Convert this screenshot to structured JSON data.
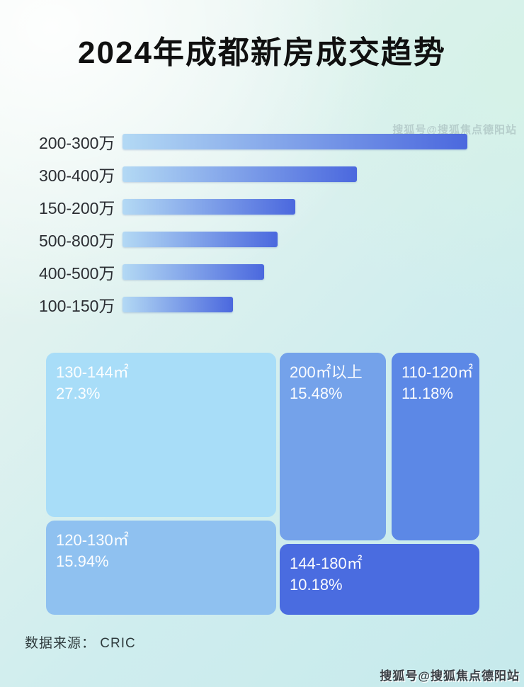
{
  "title": "2024年成都新房成交趋势",
  "source": "数据来源： CRIC",
  "watermark": {
    "text": "搜狐号@搜狐焦点德阳站"
  },
  "colors": {
    "background_start": "#eff7f2",
    "background_end": "#c6eaec",
    "bar_gradient_start": "#b3d9f4",
    "bar_gradient_end": "#4b68de",
    "title_text": "#101010",
    "label_text": "#2b2e33",
    "tile_text": "#ffffff"
  },
  "chart_data": [
    {
      "type": "bar",
      "title": "2024年成都新房成交趋势",
      "orientation": "horizontal",
      "categories": [
        "200-300万",
        "300-400万",
        "150-200万",
        "500-800万",
        "400-500万",
        "100-150万"
      ],
      "values_pct_of_max": [
        100,
        68,
        50,
        45,
        41,
        32
      ],
      "value_labels_shown": false,
      "legend": "none",
      "grid": false,
      "bar_gradient": [
        "#b3d9f4",
        "#4b68de"
      ]
    },
    {
      "type": "treemap",
      "tiles": [
        {
          "label": "130-144㎡",
          "pct": "27.3%",
          "value": 27.3,
          "color": "#a8ddf8"
        },
        {
          "label": "120-130㎡",
          "pct": "15.94%",
          "value": 15.94,
          "color": "#8fc1f0"
        },
        {
          "label": "200㎡以上",
          "pct": "15.48%",
          "value": 15.48,
          "color": "#74a2ea"
        },
        {
          "label": "110-120㎡",
          "pct": "11.18%",
          "value": 11.18,
          "color": "#5c88e6"
        },
        {
          "label": "144-180㎡",
          "pct": "10.18%",
          "value": 10.18,
          "color": "#4a6ce0"
        }
      ]
    }
  ]
}
